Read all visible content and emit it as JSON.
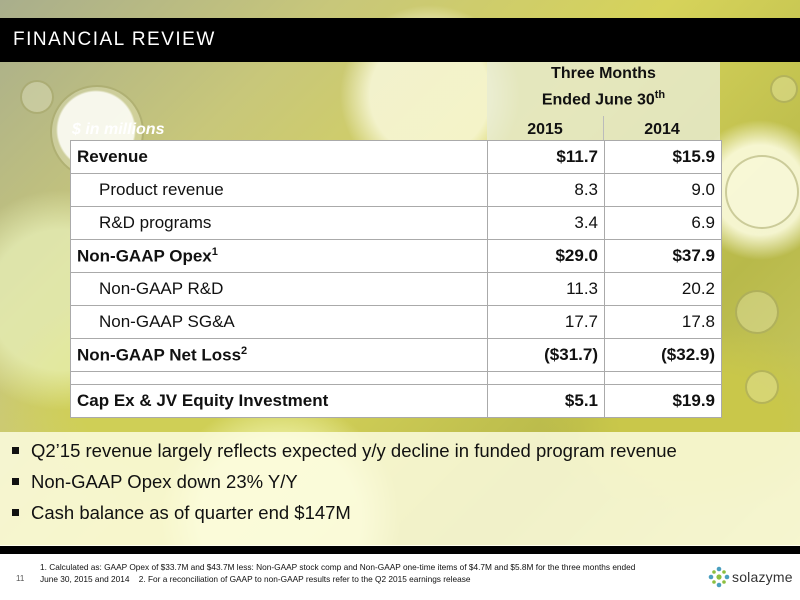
{
  "header": {
    "title": "FINANCIAL REVIEW"
  },
  "column_header": {
    "line1": "Three Months",
    "line2": "Ended June 30",
    "sup": "th",
    "year1": "2015",
    "year2": "2014"
  },
  "units": "$ in millions",
  "table": {
    "rows": [
      {
        "label": "Revenue",
        "sup": "",
        "v2015": "$11.7",
        "v2014": "$15.9"
      },
      {
        "label": "Product revenue",
        "sup": "",
        "v2015": "8.3",
        "v2014": "9.0"
      },
      {
        "label": "R&D programs",
        "sup": "",
        "v2015": "3.4",
        "v2014": "6.9"
      },
      {
        "label": "Non-GAAP Opex",
        "sup": "1",
        "v2015": "$29.0",
        "v2014": "$37.9"
      },
      {
        "label": "Non-GAAP R&D",
        "sup": "",
        "v2015": "11.3",
        "v2014": "20.2"
      },
      {
        "label": "Non-GAAP SG&A",
        "sup": "",
        "v2015": "17.7",
        "v2014": "17.8"
      },
      {
        "label": "Non-GAAP Net Loss",
        "sup": "2",
        "v2015": "($31.7)",
        "v2014": "($32.9)"
      },
      {
        "label": "Cap Ex & JV Equity Investment",
        "sup": "",
        "v2015": "$5.1",
        "v2014": "$19.9"
      }
    ]
  },
  "bullets": [
    "Q2’15 revenue largely reflects expected y/y decline in funded program revenue",
    "Non-GAAP Opex down 23% Y/Y",
    "Cash balance as of quarter end $147M"
  ],
  "footer": {
    "page_number": "11",
    "footnote_line1": "1. Calculated as: GAAP Opex of $33.7M and $43.7M less: Non-GAAP stock comp and Non-GAAP one-time items of $4.7M and $5.8M for the three months ended",
    "footnote_line2": "June 30, 2015 and 2014    2. For a reconciliation of GAAP to non-GAAP results refer to the Q2 2015 earnings release",
    "logo_text": "solazyme"
  },
  "colors": {
    "header_bg": "#000000",
    "logo_accent": "#4a9fbf",
    "logo_green": "#8cbf3f"
  }
}
